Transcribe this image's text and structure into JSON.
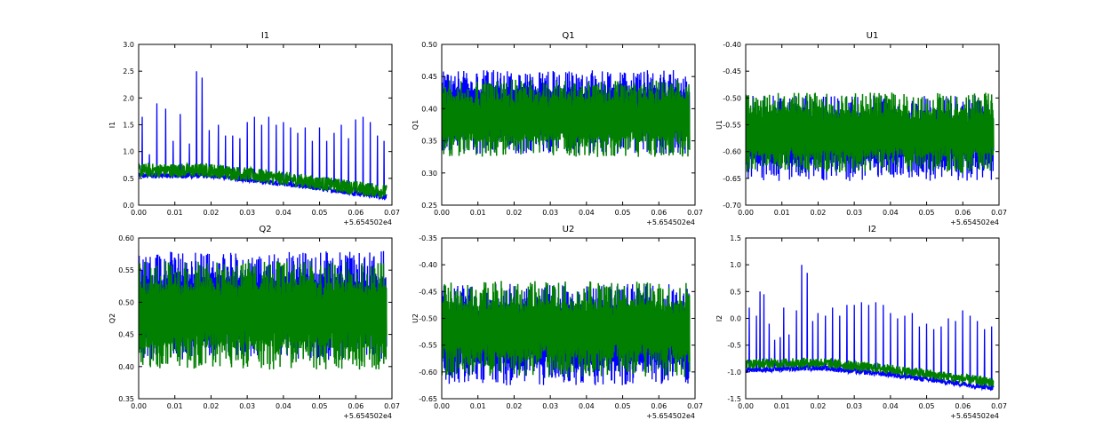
{
  "colors": {
    "series1": "#0000ff",
    "series2": "#007f00",
    "axes": "#000000",
    "background": "#ffffff"
  },
  "chart_data": [
    {
      "type": "line",
      "title": "I1",
      "ylabel": "I1",
      "xlim": [
        0,
        0.07
      ],
      "ylim": [
        0,
        3.0
      ],
      "xticks": [
        "0.00",
        "0.01",
        "0.02",
        "0.03",
        "0.04",
        "0.05",
        "0.06",
        "0.07"
      ],
      "yticks": [
        "0.0",
        "0.5",
        "1.0",
        "1.5",
        "2.0",
        "2.5",
        "3.0"
      ],
      "x_offset_label": "+5.654502e4",
      "x_range": [
        0,
        0.0685
      ],
      "series": [
        {
          "baseline": [
            [
              0,
              0.55
            ],
            [
              0.02,
              0.55
            ],
            [
              0.04,
              0.4
            ],
            [
              0.0685,
              0.15
            ]
          ],
          "band": 0.05,
          "spikes": [
            [
              0.001,
              1.65
            ],
            [
              0.003,
              0.95
            ],
            [
              0.005,
              1.9
            ],
            [
              0.0075,
              1.8
            ],
            [
              0.0095,
              1.2
            ],
            [
              0.0115,
              1.7
            ],
            [
              0.014,
              1.15
            ],
            [
              0.016,
              2.5
            ],
            [
              0.0175,
              2.38
            ],
            [
              0.0195,
              1.4
            ],
            [
              0.022,
              1.5
            ],
            [
              0.024,
              1.3
            ],
            [
              0.026,
              1.3
            ],
            [
              0.028,
              1.25
            ],
            [
              0.03,
              1.55
            ],
            [
              0.032,
              1.65
            ],
            [
              0.034,
              1.5
            ],
            [
              0.036,
              1.65
            ],
            [
              0.038,
              1.5
            ],
            [
              0.04,
              1.55
            ],
            [
              0.042,
              1.45
            ],
            [
              0.044,
              1.35
            ],
            [
              0.046,
              1.45
            ],
            [
              0.048,
              1.2
            ],
            [
              0.05,
              1.45
            ],
            [
              0.052,
              1.2
            ],
            [
              0.054,
              1.35
            ],
            [
              0.056,
              1.5
            ],
            [
              0.058,
              1.25
            ],
            [
              0.06,
              1.6
            ],
            [
              0.062,
              1.65
            ],
            [
              0.064,
              1.55
            ],
            [
              0.066,
              1.3
            ],
            [
              0.0678,
              1.2
            ]
          ]
        },
        {
          "baseline": [
            [
              0,
              0.65
            ],
            [
              0.02,
              0.65
            ],
            [
              0.04,
              0.5
            ],
            [
              0.0685,
              0.25
            ]
          ],
          "band": 0.13
        }
      ]
    },
    {
      "type": "line",
      "title": "Q1",
      "ylabel": "Q1",
      "xlim": [
        0,
        0.07
      ],
      "ylim": [
        0.25,
        0.5
      ],
      "xticks": [
        "0.00",
        "0.01",
        "0.02",
        "0.03",
        "0.04",
        "0.05",
        "0.06",
        "0.07"
      ],
      "yticks": [
        "0.25",
        "0.30",
        "0.35",
        "0.40",
        "0.45",
        "0.50"
      ],
      "x_offset_label": "+5.654502e4",
      "x_range": [
        0,
        0.0685
      ],
      "series": [
        {
          "center": 0.395,
          "amplitude": 0.065
        },
        {
          "center": 0.385,
          "amplitude": 0.06
        }
      ]
    },
    {
      "type": "line",
      "title": "U1",
      "ylabel": "U1",
      "xlim": [
        0,
        0.07
      ],
      "ylim": [
        -0.7,
        -0.4
      ],
      "xticks": [
        "0.00",
        "0.01",
        "0.02",
        "0.03",
        "0.04",
        "0.05",
        "0.06",
        "0.07"
      ],
      "yticks": [
        "-0.70",
        "-0.65",
        "-0.60",
        "-0.55",
        "-0.50",
        "-0.45",
        "-0.40"
      ],
      "x_offset_label": "+5.654502e4",
      "x_range": [
        0,
        0.0685
      ],
      "series": [
        {
          "center": -0.575,
          "amplitude": 0.08
        },
        {
          "center": -0.565,
          "amplitude": 0.075
        }
      ]
    },
    {
      "type": "line",
      "title": "Q2",
      "ylabel": "Q2",
      "xlim": [
        0,
        0.07
      ],
      "ylim": [
        0.35,
        0.6
      ],
      "xticks": [
        "0.00",
        "0.01",
        "0.02",
        "0.03",
        "0.04",
        "0.05",
        "0.06",
        "0.07"
      ],
      "yticks": [
        "0.35",
        "0.40",
        "0.45",
        "0.50",
        "0.55",
        "0.60"
      ],
      "x_offset_label": "+5.654502e4",
      "x_range": [
        0,
        0.0685
      ],
      "series": [
        {
          "center": 0.495,
          "amplitude": 0.085
        },
        {
          "center": 0.48,
          "amplitude": 0.085
        }
      ]
    },
    {
      "type": "line",
      "title": "U2",
      "ylabel": "U2",
      "xlim": [
        0,
        0.07
      ],
      "ylim": [
        -0.65,
        -0.35
      ],
      "xticks": [
        "0.00",
        "0.01",
        "0.02",
        "0.03",
        "0.04",
        "0.05",
        "0.06",
        "0.07"
      ],
      "yticks": [
        "-0.65",
        "-0.60",
        "-0.55",
        "-0.50",
        "-0.45",
        "-0.40",
        "-0.35"
      ],
      "x_offset_label": "+5.654502e4",
      "x_range": [
        0,
        0.0685
      ],
      "series": [
        {
          "center": -0.53,
          "amplitude": 0.095
        },
        {
          "center": -0.52,
          "amplitude": 0.09
        }
      ]
    },
    {
      "type": "line",
      "title": "I2",
      "ylabel": "I2",
      "xlim": [
        0,
        0.07
      ],
      "ylim": [
        -1.5,
        1.5
      ],
      "xticks": [
        "0.00",
        "0.01",
        "0.02",
        "0.03",
        "0.04",
        "0.05",
        "0.06",
        "0.07"
      ],
      "yticks": [
        "-1.5",
        "-1.0",
        "-0.5",
        "0.0",
        "0.5",
        "1.0",
        "1.5"
      ],
      "x_offset_label": "+5.654502e4",
      "x_range": [
        0,
        0.0685
      ],
      "series": [
        {
          "baseline": [
            [
              0,
              -0.97
            ],
            [
              0.02,
              -0.92
            ],
            [
              0.04,
              -1.05
            ],
            [
              0.0685,
              -1.3
            ]
          ],
          "band": 0.05,
          "spikes": [
            [
              0.001,
              0.2
            ],
            [
              0.003,
              0.05
            ],
            [
              0.004,
              0.5
            ],
            [
              0.005,
              0.45
            ],
            [
              0.0065,
              -0.1
            ],
            [
              0.008,
              -0.4
            ],
            [
              0.0095,
              -0.35
            ],
            [
              0.0105,
              0.2
            ],
            [
              0.012,
              -0.3
            ],
            [
              0.014,
              0.15
            ],
            [
              0.0155,
              1.0
            ],
            [
              0.017,
              0.85
            ],
            [
              0.0185,
              -0.05
            ],
            [
              0.02,
              0.1
            ],
            [
              0.022,
              0.05
            ],
            [
              0.024,
              0.2
            ],
            [
              0.026,
              0.05
            ],
            [
              0.028,
              0.25
            ],
            [
              0.03,
              0.25
            ],
            [
              0.032,
              0.3
            ],
            [
              0.034,
              0.25
            ],
            [
              0.036,
              0.3
            ],
            [
              0.038,
              0.25
            ],
            [
              0.04,
              0.1
            ],
            [
              0.042,
              0.0
            ],
            [
              0.044,
              0.05
            ],
            [
              0.046,
              0.1
            ],
            [
              0.048,
              -0.15
            ],
            [
              0.05,
              -0.1
            ],
            [
              0.052,
              -0.2
            ],
            [
              0.054,
              -0.15
            ],
            [
              0.056,
              0.0
            ],
            [
              0.058,
              -0.05
            ],
            [
              0.06,
              0.15
            ],
            [
              0.062,
              0.05
            ],
            [
              0.064,
              -0.05
            ],
            [
              0.066,
              -0.2
            ],
            [
              0.068,
              -0.15
            ]
          ]
        },
        {
          "baseline": [
            [
              0,
              -0.85
            ],
            [
              0.02,
              -0.82
            ],
            [
              0.04,
              -0.95
            ],
            [
              0.0685,
              -1.2
            ]
          ],
          "band": 0.09
        }
      ]
    }
  ]
}
